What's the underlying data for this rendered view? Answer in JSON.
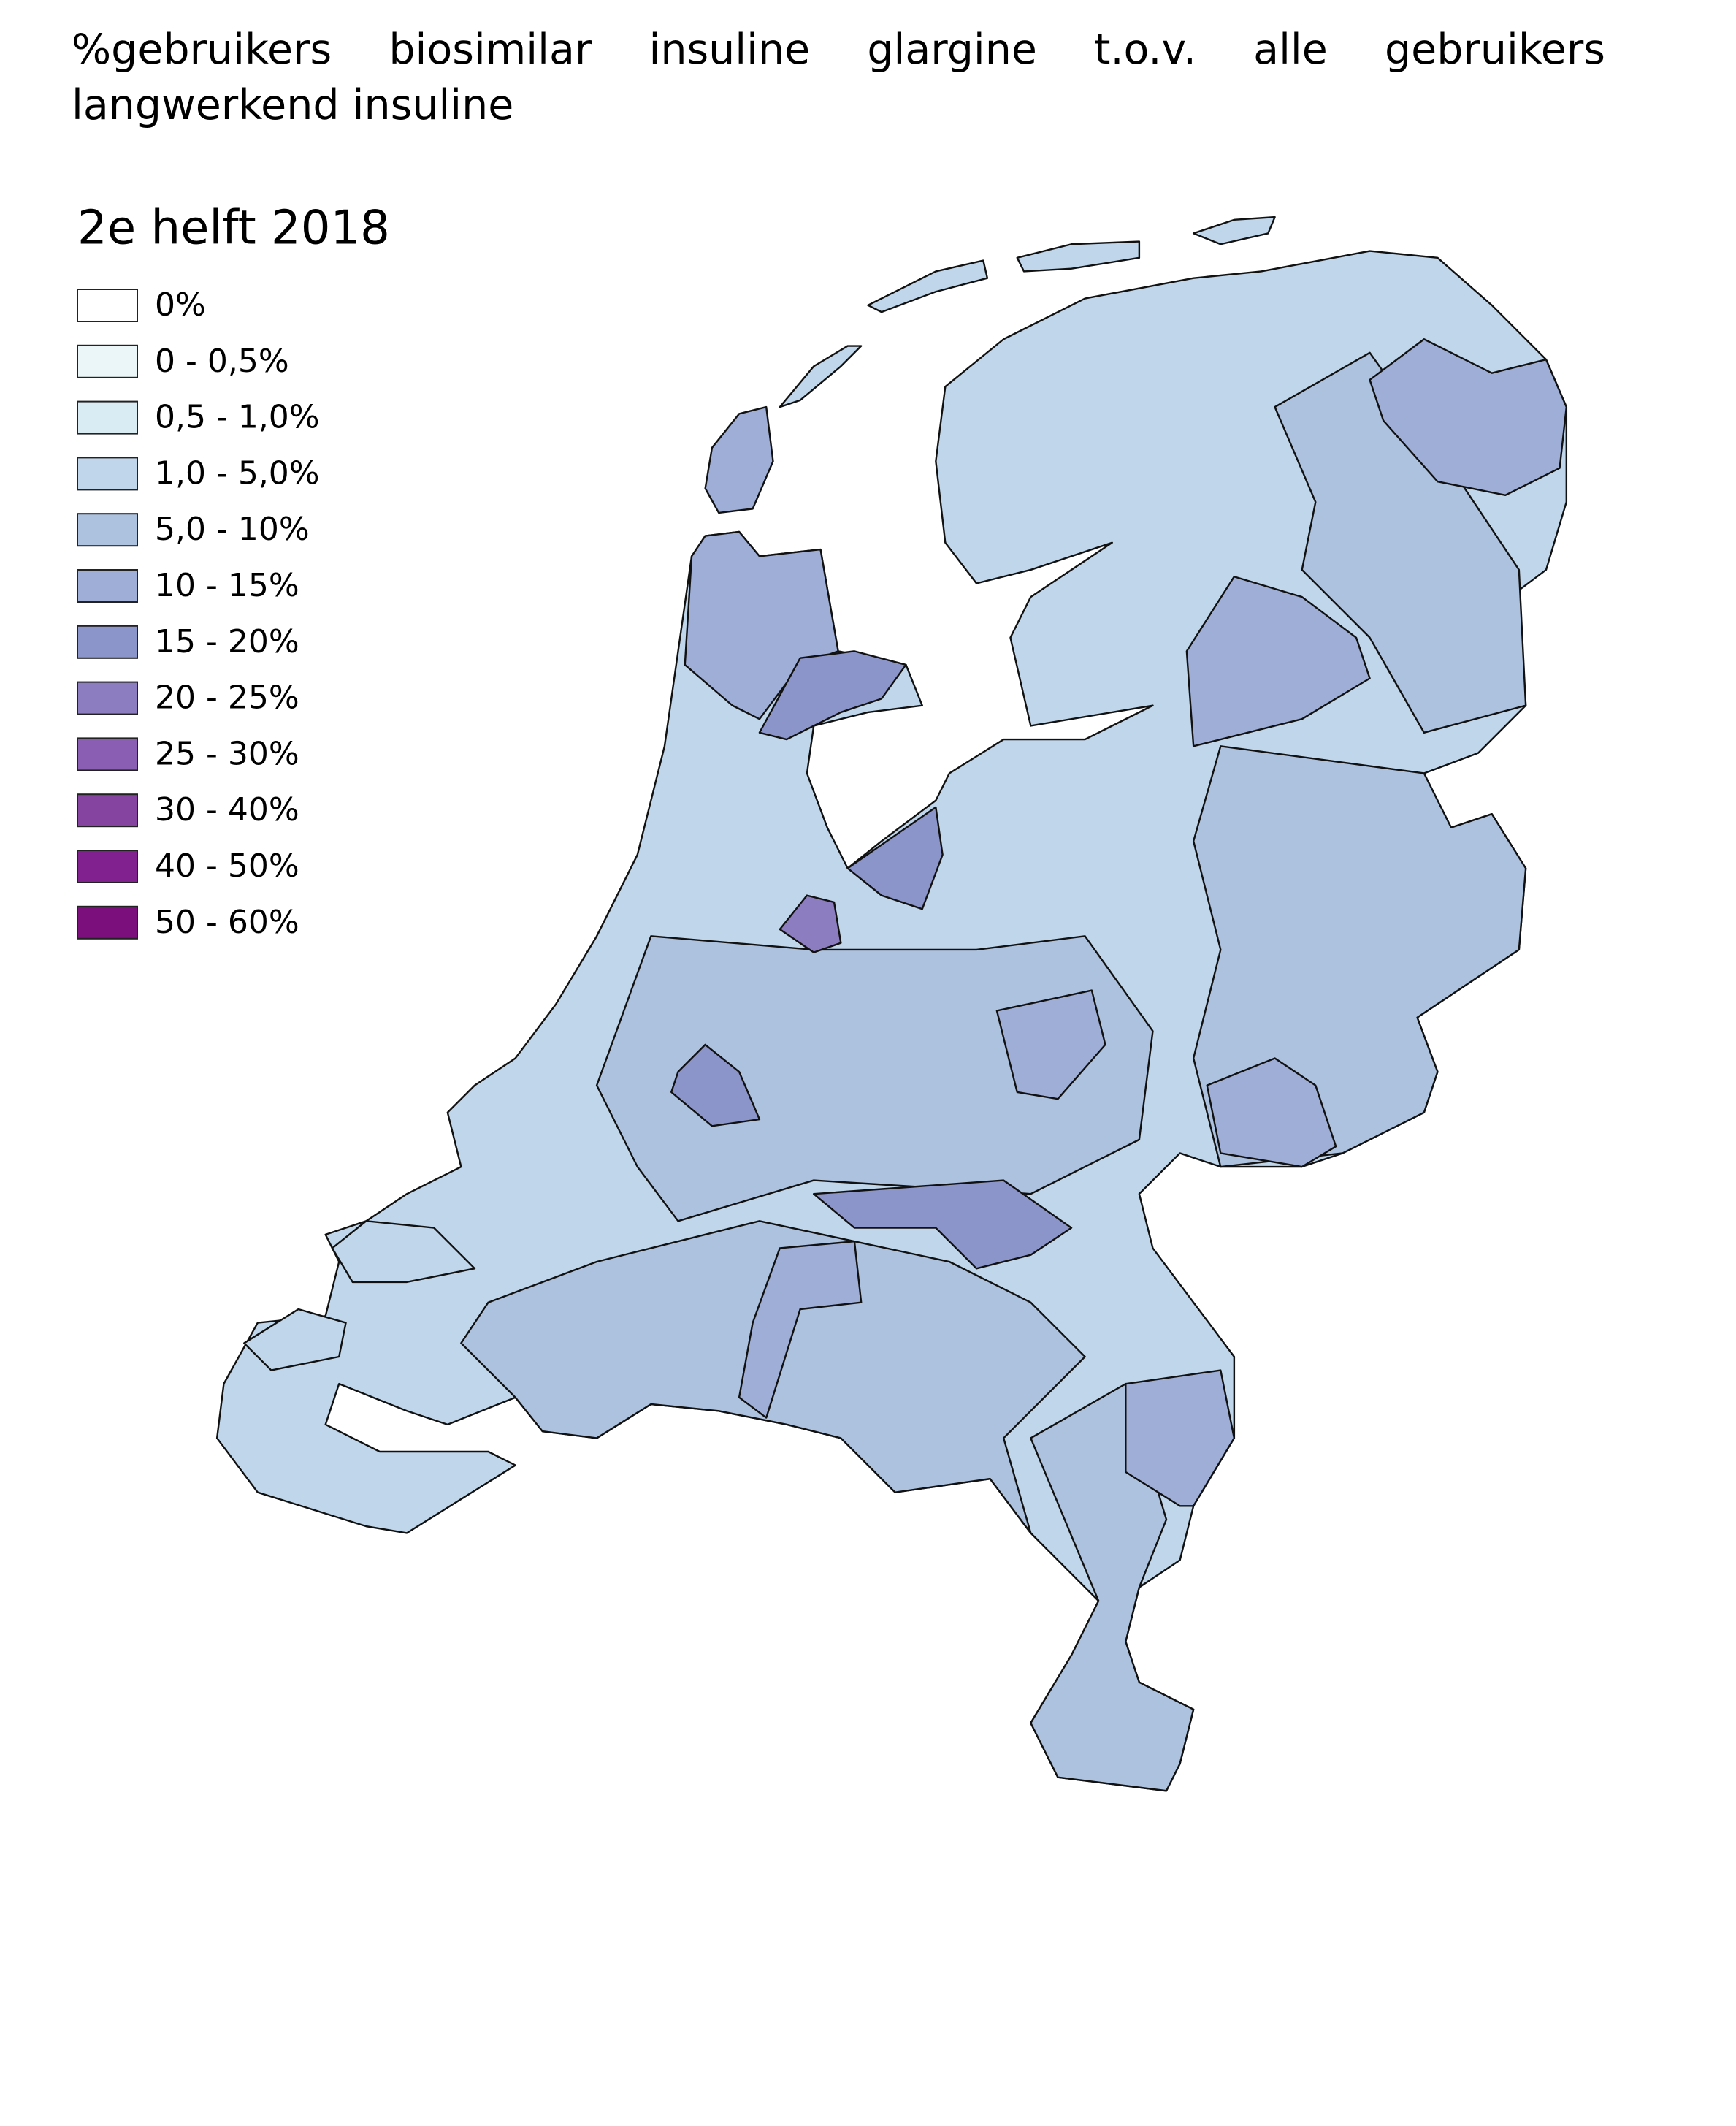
{
  "title": "%gebruikers biosimilar insuline glargine t.o.v. alle gebruikers langwerkend insuline",
  "legend": {
    "title": "2e helft 2018",
    "items": [
      {
        "label": "0%",
        "color": "#ffffff"
      },
      {
        "label": "0 - 0,5%",
        "color": "#eaf6f7"
      },
      {
        "label": "0,5 - 1,0%",
        "color": "#d9ebf3"
      },
      {
        "label": "1,0 - 5,0%",
        "color": "#c0d6ea"
      },
      {
        "label": "5,0 - 10%",
        "color": "#adc2de"
      },
      {
        "label": "10 - 15%",
        "color": "#9eaed6"
      },
      {
        "label": "15 - 20%",
        "color": "#8c95c9"
      },
      {
        "label": "20 - 25%",
        "color": "#8b7dc0"
      },
      {
        "label": "25 - 30%",
        "color": "#8a5fb3"
      },
      {
        "label": "30 - 40%",
        "color": "#8444a0"
      },
      {
        "label": "40 - 50%",
        "color": "#80218f"
      },
      {
        "label": "50 - 60%",
        "color": "#7b0f7c"
      }
    ]
  }
}
